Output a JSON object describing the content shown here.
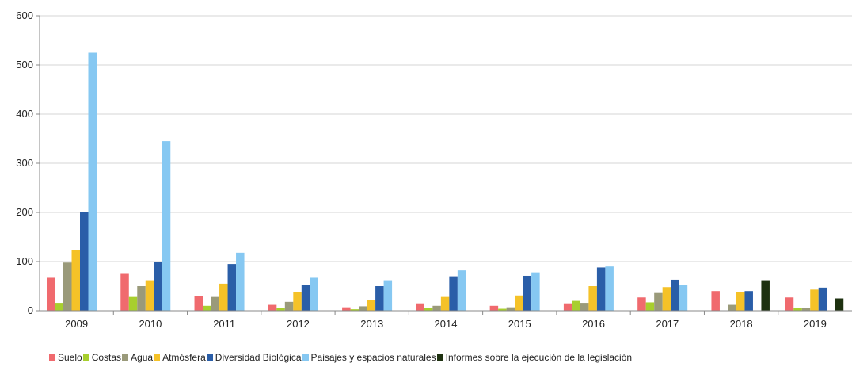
{
  "chart_data": {
    "type": "bar",
    "title": "",
    "xlabel": "",
    "ylabel": "",
    "ylim": [
      0,
      600
    ],
    "yticks": [
      "0",
      "100",
      "200",
      "300",
      "400",
      "500",
      "600"
    ],
    "grid": true,
    "legend_position": "bottom",
    "categories": [
      "2009",
      "2010",
      "2011",
      "2012",
      "2013",
      "2014",
      "2015",
      "2016",
      "2017",
      "2018",
      "2019"
    ],
    "series": [
      {
        "name": "Suelo",
        "color": "#f06a6e",
        "values": [
          67,
          75,
          30,
          12,
          7,
          15,
          10,
          15,
          27,
          40,
          27
        ]
      },
      {
        "name": "Costas",
        "color": "#a8cf2e",
        "values": [
          16,
          28,
          10,
          5,
          3,
          5,
          4,
          20,
          17,
          0,
          5
        ]
      },
      {
        "name": "Agua",
        "color": "#9a9a7a",
        "values": [
          98,
          50,
          28,
          18,
          9,
          10,
          7,
          16,
          36,
          12,
          6
        ]
      },
      {
        "name": "Atmósfera",
        "color": "#f5c228",
        "values": [
          124,
          62,
          55,
          38,
          22,
          28,
          31,
          50,
          48,
          38,
          43
        ]
      },
      {
        "name": "Diversidad Biológica",
        "color": "#2a5ea8",
        "values": [
          200,
          99,
          95,
          53,
          50,
          70,
          71,
          88,
          63,
          40,
          47
        ]
      },
      {
        "name": "Paisajes y espacios naturales",
        "color": "#86c8f2",
        "values": [
          525,
          345,
          118,
          67,
          62,
          82,
          78,
          90,
          52,
          0,
          0
        ]
      },
      {
        "name": "Informes sobre la ejecución de la legislación",
        "color": "#1e3110",
        "values": [
          0,
          0,
          0,
          0,
          0,
          0,
          0,
          0,
          0,
          62,
          25
        ]
      }
    ]
  }
}
